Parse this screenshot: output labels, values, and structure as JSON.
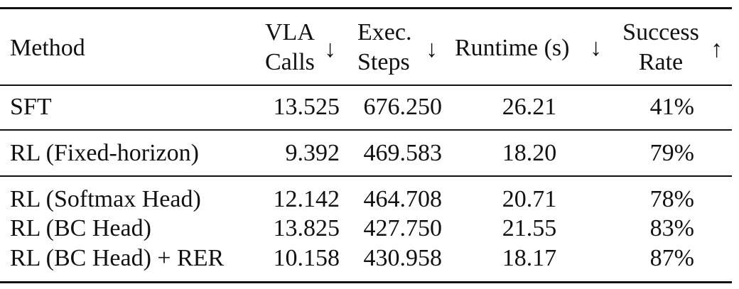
{
  "table": {
    "header": {
      "method": "Method",
      "vla_calls": {
        "lines": [
          "VLA",
          "Calls"
        ],
        "arrow": "↓"
      },
      "exec_steps": {
        "lines": [
          "Exec.",
          "Steps"
        ],
        "arrow": "↓"
      },
      "runtime": {
        "lines": [
          "Runtime (s)"
        ],
        "arrow": "↓"
      },
      "success_rate": {
        "lines": [
          "Success",
          "Rate"
        ],
        "arrow": "↑"
      }
    },
    "rows": [
      [
        "SFT",
        "13.525",
        "676.250",
        "26.21",
        "41%"
      ],
      [
        "RL (Fixed-horizon)",
        "9.392",
        "469.583",
        "18.20",
        "79%"
      ],
      [
        "RL (Softmax Head)",
        "12.142",
        "464.708",
        "20.71",
        "78%"
      ],
      [
        "RL (BC Head)",
        "13.825",
        "427.750",
        "21.55",
        "83%"
      ],
      [
        "RL (BC Head) + RER",
        "10.158",
        "430.958",
        "18.17",
        "87%"
      ]
    ]
  }
}
